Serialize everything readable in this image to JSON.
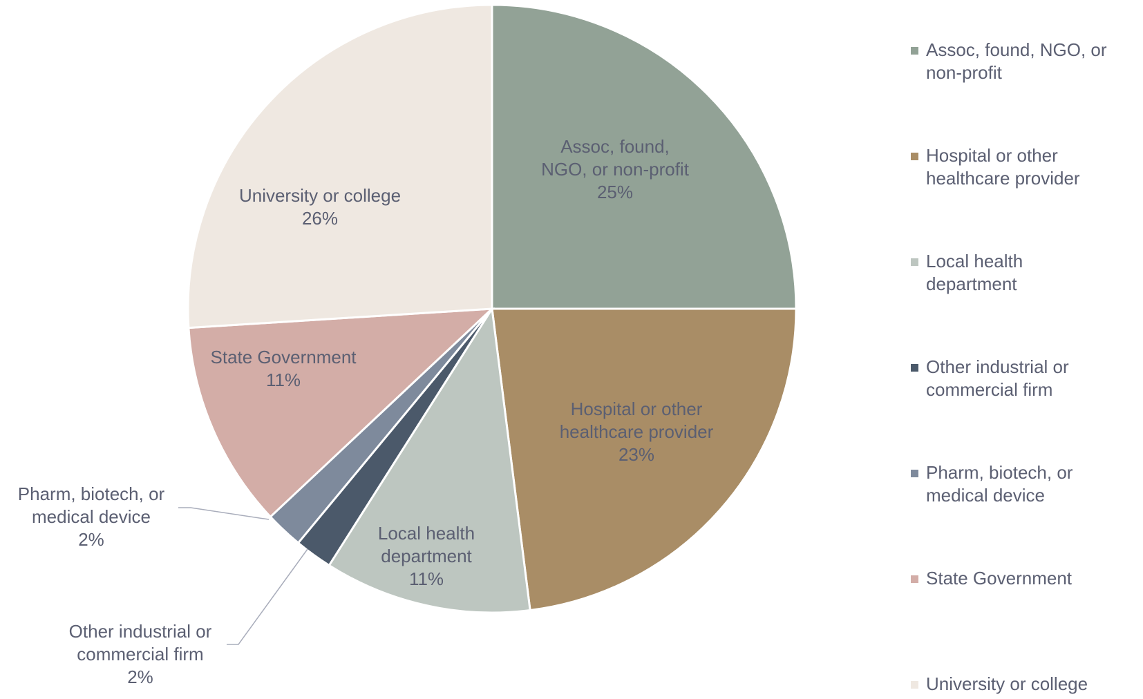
{
  "chart_data": {
    "type": "pie",
    "start_angle_deg": 0,
    "direction": "clockwise",
    "slices": [
      {
        "label": "Assoc, found, NGO, or non-profit",
        "value": 25,
        "pct": "25%",
        "color": "#92a296",
        "slice_label_lines": [
          "Assoc, found,",
          "NGO, or non-profit",
          "25%"
        ]
      },
      {
        "label": "Hospital or other healthcare provider",
        "value": 23,
        "pct": "23%",
        "color": "#a98d66",
        "slice_label_lines": [
          "Hospital or other",
          "healthcare provider",
          "23%"
        ]
      },
      {
        "label": "Local health department",
        "value": 11,
        "pct": "11%",
        "color": "#bdc6c0",
        "slice_label_lines": [
          "Local health",
          "department",
          "11%"
        ]
      },
      {
        "label": "Other industrial or commercial firm",
        "value": 2,
        "pct": "2%",
        "color": "#4b596a",
        "slice_label_lines": [
          "Other industrial or",
          "commercial firm",
          "2%"
        ]
      },
      {
        "label": "Pharm, biotech, or medical device",
        "value": 2,
        "pct": "2%",
        "color": "#7e8a9c",
        "slice_label_lines": [
          "Pharm, biotech, or",
          "medical device",
          "2%"
        ]
      },
      {
        "label": "State Government",
        "value": 11,
        "pct": "11%",
        "color": "#d3ada7",
        "slice_label_lines": [
          "State Government",
          "11%"
        ]
      },
      {
        "label": "University or college",
        "value": 26,
        "pct": "26%",
        "color": "#efe8e1",
        "slice_label_lines": [
          "University or college",
          "26%"
        ]
      }
    ],
    "legend": {
      "placement": "right",
      "entries": [
        [
          "Assoc, found, NGO, or",
          "non-profit"
        ],
        [
          "Hospital or other",
          "healthcare provider"
        ],
        [
          "Local health",
          "department"
        ],
        [
          "Other industrial or",
          "commercial firm"
        ],
        [
          "Pharm, biotech, or",
          "medical device"
        ],
        [
          "State Government"
        ],
        [
          "University or college"
        ]
      ]
    }
  }
}
